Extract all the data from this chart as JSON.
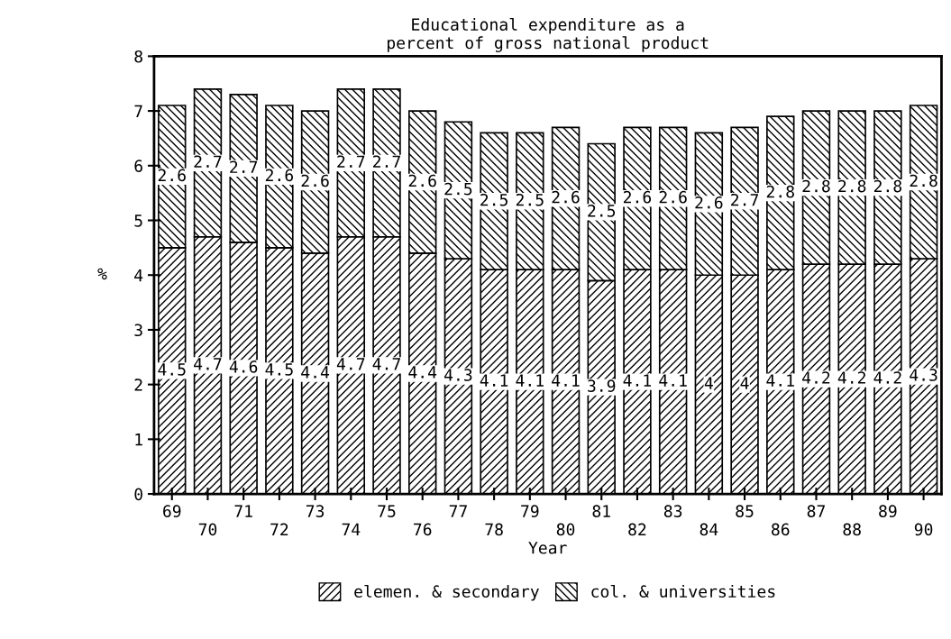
{
  "chart_data": {
    "type": "bar",
    "title": "Educational expenditure as a\npercent of gross national product",
    "xlabel": "Year",
    "ylabel": "%",
    "categories": [
      "69",
      "70",
      "71",
      "72",
      "73",
      "74",
      "75",
      "76",
      "77",
      "78",
      "79",
      "80",
      "81",
      "82",
      "83",
      "84",
      "85",
      "86",
      "87",
      "88",
      "89",
      "90"
    ],
    "stacked": true,
    "series": [
      {
        "name": "elemen. & secondary",
        "color": "#000000",
        "values": [
          4.5,
          4.7,
          4.6,
          4.5,
          4.4,
          4.7,
          4.7,
          4.4,
          4.3,
          4.1,
          4.1,
          4.1,
          3.9,
          4.1,
          4.1,
          4.0,
          4.0,
          4.1,
          4.2,
          4.2,
          4.2,
          4.3
        ],
        "value_labels": [
          "4.5",
          "4.7",
          "4.6",
          "4.5",
          "4.4",
          "4.7",
          "4.7",
          "4.4",
          "4.3",
          "4.1",
          "4.1",
          "4.1",
          "3.9",
          "4.1",
          "4.1",
          "4",
          "4",
          "4.1",
          "4.2",
          "4.2",
          "4.2",
          "4.3"
        ]
      },
      {
        "name": "col. & universities",
        "color": "#000000",
        "values": [
          2.6,
          2.7,
          2.7,
          2.6,
          2.6,
          2.7,
          2.7,
          2.6,
          2.5,
          2.5,
          2.5,
          2.6,
          2.5,
          2.6,
          2.6,
          2.6,
          2.7,
          2.8,
          2.8,
          2.8,
          2.8,
          2.8
        ],
        "value_labels": [
          "2.6",
          "2.7",
          "2.7",
          "2.6",
          "2.6",
          "2.7",
          "2.7",
          "2.6",
          "2.5",
          "2.5",
          "2.5",
          "2.6",
          "2.5",
          "2.6",
          "2.6",
          "2.6",
          "2.7",
          "2.8",
          "2.8",
          "2.8",
          "2.8",
          "2.8"
        ]
      }
    ],
    "ylim": [
      0,
      8
    ],
    "yticks": [
      0,
      1,
      2,
      3,
      4,
      5,
      6,
      7,
      8
    ],
    "grid": false,
    "legend": "bottom"
  }
}
